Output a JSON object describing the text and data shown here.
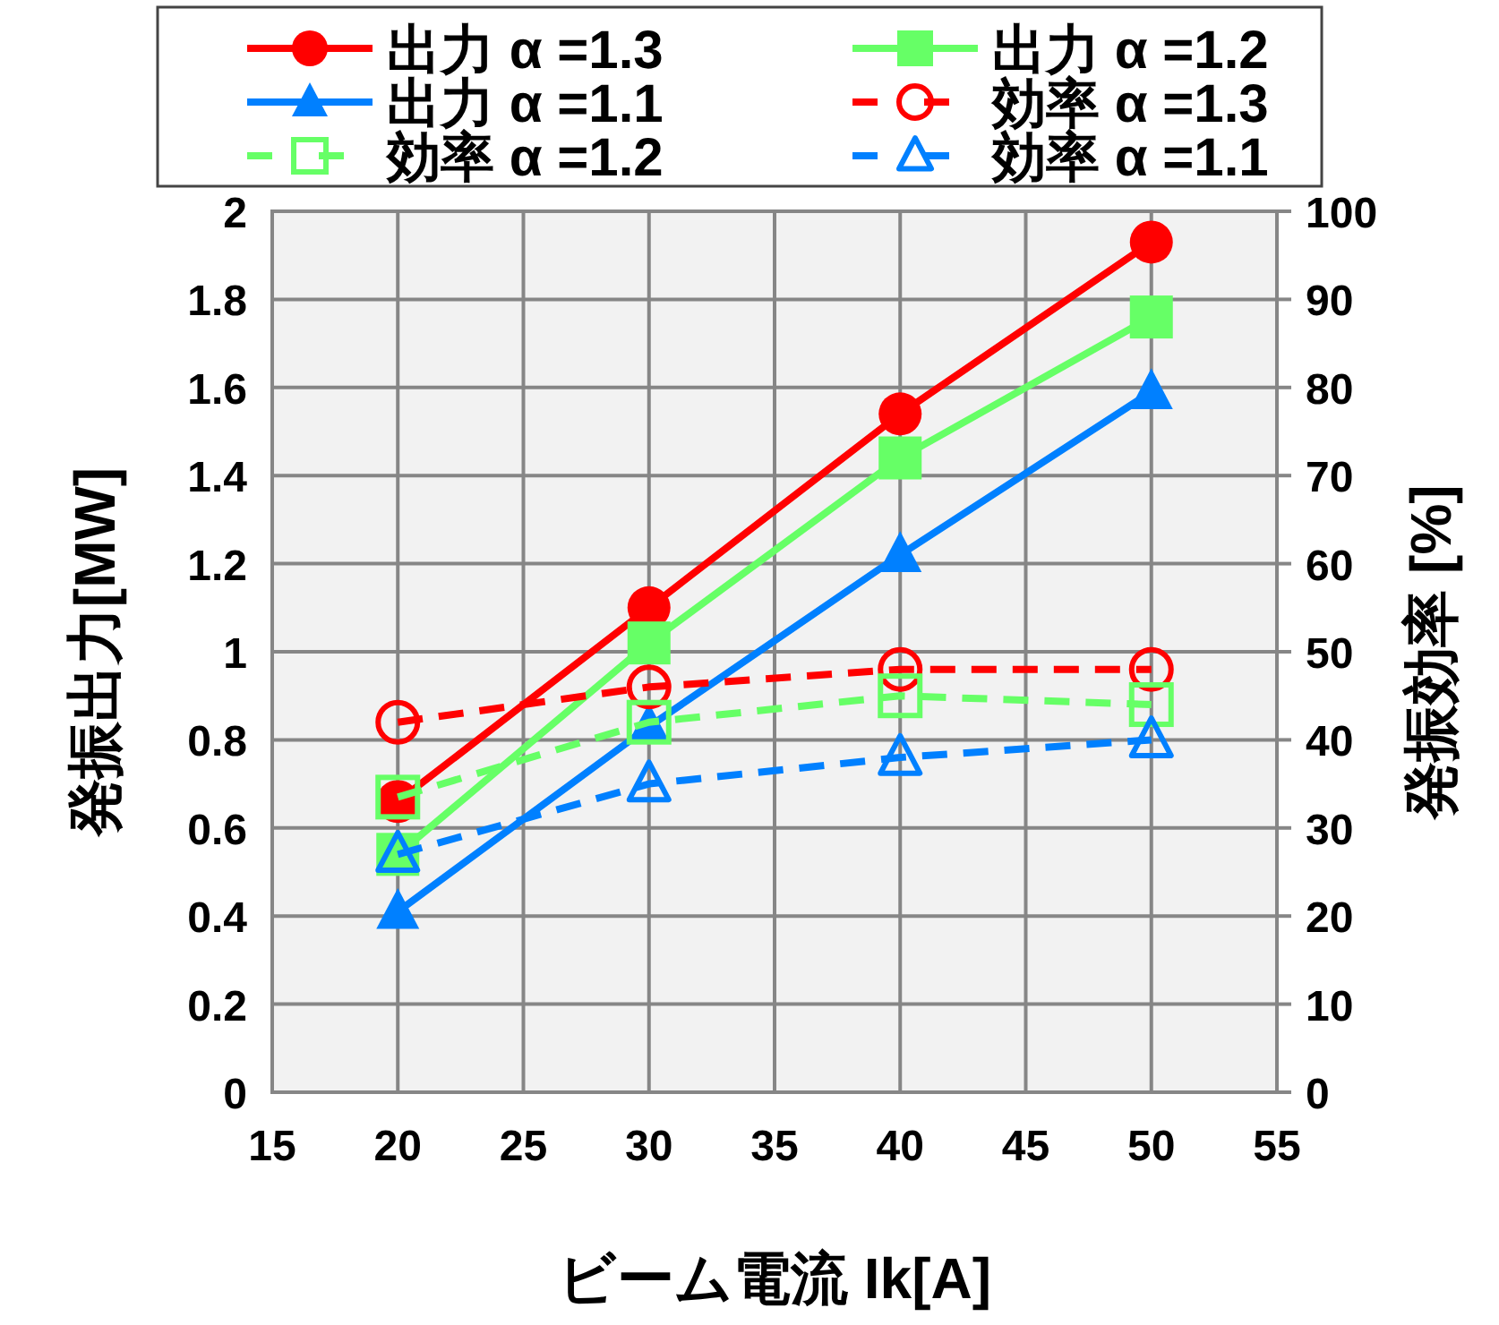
{
  "chart_data": {
    "type": "line",
    "xlabel": "ビーム電流 Ik[A]",
    "ylabel": "発振出力[MW]",
    "y2label": "発振効率 [%]",
    "x": [
      20,
      30,
      40,
      50
    ],
    "xlim": [
      15,
      55
    ],
    "xticks": [
      15,
      20,
      25,
      30,
      35,
      40,
      45,
      50,
      55
    ],
    "ylim": [
      0,
      2
    ],
    "yticks": [
      0,
      0.2,
      0.4,
      0.6,
      0.8,
      1,
      1.2,
      1.4,
      1.6,
      1.8,
      2
    ],
    "y2lim": [
      0,
      100
    ],
    "y2ticks": [
      0,
      10,
      20,
      30,
      40,
      50,
      60,
      70,
      80,
      90,
      100
    ],
    "grid": true,
    "legend": "top",
    "series": [
      {
        "name": "出力 α =1.3",
        "color": "#ff0000",
        "values": [
          0.66,
          1.1,
          1.54,
          1.93
        ],
        "marker": "circle",
        "line_style": "solid"
      },
      {
        "name": "出力 α =1.2",
        "color": "#66ff66",
        "values": [
          0.54,
          1.02,
          1.44,
          1.76
        ],
        "marker": "square",
        "line_style": "solid"
      },
      {
        "name": "出力 α =1.1",
        "color": "#0080ff",
        "values": [
          0.41,
          0.83,
          1.22,
          1.59
        ],
        "marker": "triangle",
        "line_style": "solid"
      },
      {
        "name": "効率 α =1.3",
        "color": "#ff0000",
        "values": [
          42,
          46,
          48,
          48
        ],
        "marker": "circle",
        "line_style": "dashed",
        "axis": "y2"
      },
      {
        "name": "効率 α =1.2",
        "color": "#66ff66",
        "values": [
          33.5,
          42,
          45,
          44
        ],
        "marker": "square",
        "line_style": "dashed",
        "axis": "y2"
      },
      {
        "name": "効率 α =1.1",
        "color": "#0080ff",
        "values": [
          27,
          35,
          38,
          40
        ],
        "marker": "triangle",
        "line_style": "dashed",
        "axis": "y2"
      }
    ]
  }
}
